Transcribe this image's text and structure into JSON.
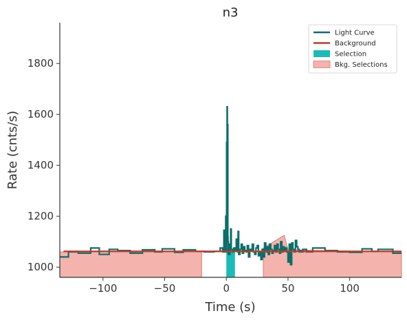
{
  "chart_data": {
    "type": "line",
    "title": "n3",
    "xlabel": "Time (s)",
    "ylabel": "Rate (cnts/s)",
    "xlim": [
      -135,
      142
    ],
    "ylim": [
      960,
      1960
    ],
    "xticks": [
      -100,
      -50,
      0,
      50,
      100
    ],
    "xtick_labels": [
      "−100",
      "−50",
      "0",
      "50",
      "100"
    ],
    "yticks": [
      1000,
      1200,
      1400,
      1600,
      1800
    ],
    "ytick_labels": [
      "1000",
      "1200",
      "1400",
      "1600",
      "1800"
    ],
    "grid": false,
    "legend_position": "top-right",
    "colors": {
      "light_curve": "#0b6e69",
      "background": "#c0392b",
      "selection": "#1bbcb5",
      "bkg_selection_fill": "#f4b3ac",
      "bkg_selection_edge": "#e07a70"
    },
    "legend": [
      {
        "label": "Light Curve",
        "kind": "line",
        "color": "#0b6e69"
      },
      {
        "label": "Background",
        "kind": "line",
        "color": "#c0392b"
      },
      {
        "label": "Selection",
        "kind": "patch",
        "color": "#1bbcb5"
      },
      {
        "label": "Bkg. Selections",
        "kind": "patch",
        "color": "#f4b3ac"
      }
    ],
    "background_model": {
      "x": [
        -132,
        142
      ],
      "y": [
        1062,
        1062
      ]
    },
    "selection": {
      "x": [
        0,
        7
      ]
    },
    "bkg_selections": [
      {
        "x": [
          -135,
          -20
        ],
        "top_x": [
          -135,
          -20
        ],
        "top_y": [
          1060,
          1062
        ]
      },
      {
        "x": [
          30,
          142
        ],
        "top_x": [
          30,
          35,
          40,
          47,
          50,
          80,
          142
        ],
        "top_y": [
          1075,
          1090,
          1105,
          1125,
          1068,
          1065,
          1060
        ]
      }
    ],
    "light_curve": {
      "step_x": [
        -135,
        -128,
        -120,
        -110,
        -103,
        -95,
        -88,
        -78,
        -68,
        -58,
        -52,
        -42,
        -35,
        -25,
        -18,
        -10,
        -5,
        -3,
        -2,
        -1.5,
        -1,
        -0.5,
        0,
        0.2,
        0.4,
        0.6,
        0.8,
        1.0,
        1.2,
        1.4,
        1.6,
        1.8,
        2.0,
        2.3,
        2.6,
        3,
        3.5,
        4,
        5,
        6,
        7,
        8,
        9,
        9.5,
        10,
        11,
        12,
        13,
        14,
        15,
        16,
        17,
        18,
        19,
        20,
        21,
        22,
        23,
        24,
        25,
        26,
        27,
        28,
        29,
        30,
        31,
        32,
        33,
        34,
        35,
        36,
        37,
        38,
        39,
        40,
        41,
        42,
        43,
        44,
        45,
        46,
        47,
        48,
        49,
        50,
        51,
        52,
        53,
        54,
        55,
        56,
        57,
        58,
        59,
        60,
        61,
        62,
        65,
        70,
        80,
        90,
        100,
        110,
        118,
        123,
        135,
        142
      ],
      "step_y": [
        1040,
        1060,
        1055,
        1075,
        1050,
        1070,
        1065,
        1055,
        1068,
        1060,
        1072,
        1058,
        1068,
        1062,
        1060,
        1062,
        1075,
        1060,
        1145,
        1080,
        1060,
        1200,
        1060,
        1490,
        1200,
        1630,
        1300,
        1560,
        1120,
        1100,
        1050,
        1080,
        1070,
        1090,
        1050,
        1070,
        1150,
        1070,
        1060,
        1075,
        1065,
        1110,
        1060,
        1140,
        1050,
        1070,
        1090,
        1055,
        1080,
        1065,
        1060,
        1085,
        1040,
        1070,
        1065,
        1090,
        1060,
        1050,
        1075,
        1085,
        1045,
        1060,
        1030,
        1070,
        1040,
        1095,
        1060,
        1080,
        1050,
        1090,
        1070,
        1055,
        1065,
        1085,
        1060,
        1090,
        1070,
        1055,
        1100,
        1060,
        1080,
        1065,
        1075,
        1060,
        1020,
        1090,
        1010,
        1095,
        1070,
        1060,
        1105,
        1080,
        1070,
        1060,
        1065,
        1060,
        1070,
        1060,
        1075,
        1065,
        1060,
        1058,
        1072,
        1062,
        1070,
        1055,
        1055
      ]
    }
  }
}
